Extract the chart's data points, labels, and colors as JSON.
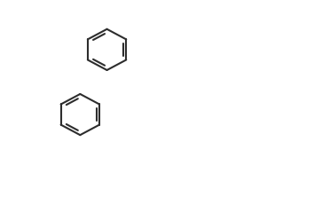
{
  "background_color": "#ffffff",
  "line_color": "#1a1a2e",
  "line_width": 1.5,
  "font_size": 9,
  "bond_color": "#2d2d2d"
}
